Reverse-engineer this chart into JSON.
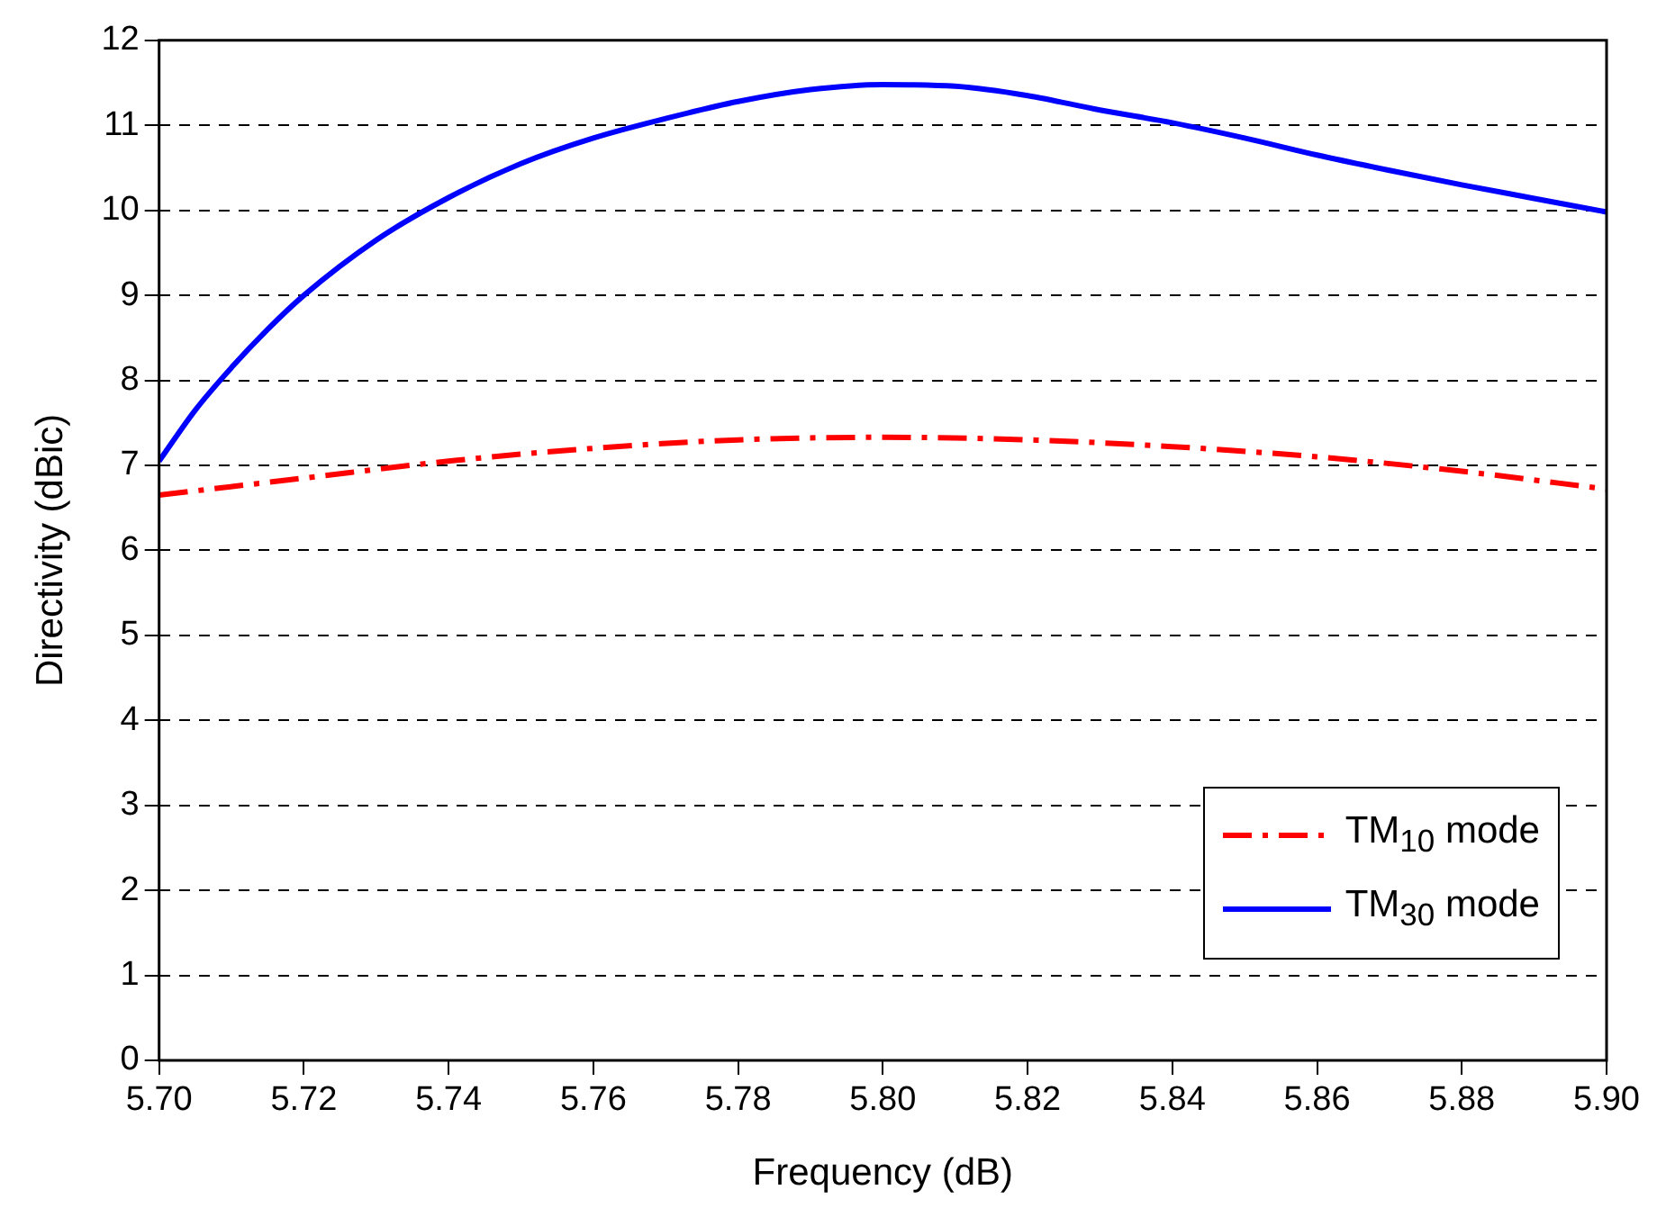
{
  "chart_data": {
    "type": "line",
    "xlabel": "Frequency (dB)",
    "ylabel": "Directivity (dBic)",
    "xlim": [
      5.7,
      5.9
    ],
    "xticks": [
      {
        "value": 5.7,
        "label": "5.70"
      },
      {
        "value": 5.72,
        "label": "5.72"
      },
      {
        "value": 5.74,
        "label": "5.74"
      },
      {
        "value": 5.76,
        "label": "5.76"
      },
      {
        "value": 5.78,
        "label": "5.78"
      },
      {
        "value": 5.8,
        "label": "5.80"
      },
      {
        "value": 5.82,
        "label": "5.82"
      },
      {
        "value": 5.84,
        "label": "5.84"
      },
      {
        "value": 5.86,
        "label": "5.86"
      },
      {
        "value": 5.88,
        "label": "5.88"
      },
      {
        "value": 5.9,
        "label": "5.90"
      }
    ],
    "ylim": [
      0,
      12
    ],
    "yticks": [
      0,
      1,
      2,
      3,
      4,
      5,
      6,
      7,
      8,
      9,
      10,
      11,
      12
    ],
    "grid": "y",
    "legend": "bottom right",
    "marker": "none",
    "series": [
      {
        "name": "TM$_{10}$ mode",
        "color": "#ff0000",
        "line_style": "dashed",
        "x": [
          5.7,
          5.72,
          5.74,
          5.76,
          5.78,
          5.8,
          5.82,
          5.84,
          5.86,
          5.88,
          5.9
        ],
        "values": [
          6.65,
          6.85,
          7.05,
          7.2,
          7.3,
          7.33,
          7.3,
          7.22,
          7.1,
          6.93,
          6.72
        ]
      },
      {
        "name": "TM$_{30}$ mode",
        "color": "#0000ff",
        "line_style": "solid",
        "x": [
          5.7,
          5.705,
          5.71,
          5.715,
          5.72,
          5.73,
          5.74,
          5.75,
          5.76,
          5.77,
          5.78,
          5.79,
          5.8,
          5.81,
          5.82,
          5.83,
          5.84,
          5.85,
          5.86,
          5.87,
          5.88,
          5.89,
          5.9
        ],
        "values": [
          7.05,
          7.65,
          8.15,
          8.6,
          9.0,
          9.65,
          10.15,
          10.55,
          10.85,
          11.08,
          11.28,
          11.42,
          11.48,
          11.46,
          11.35,
          11.18,
          11.03,
          10.85,
          10.65,
          10.47,
          10.3,
          10.14,
          9.98
        ]
      }
    ]
  }
}
